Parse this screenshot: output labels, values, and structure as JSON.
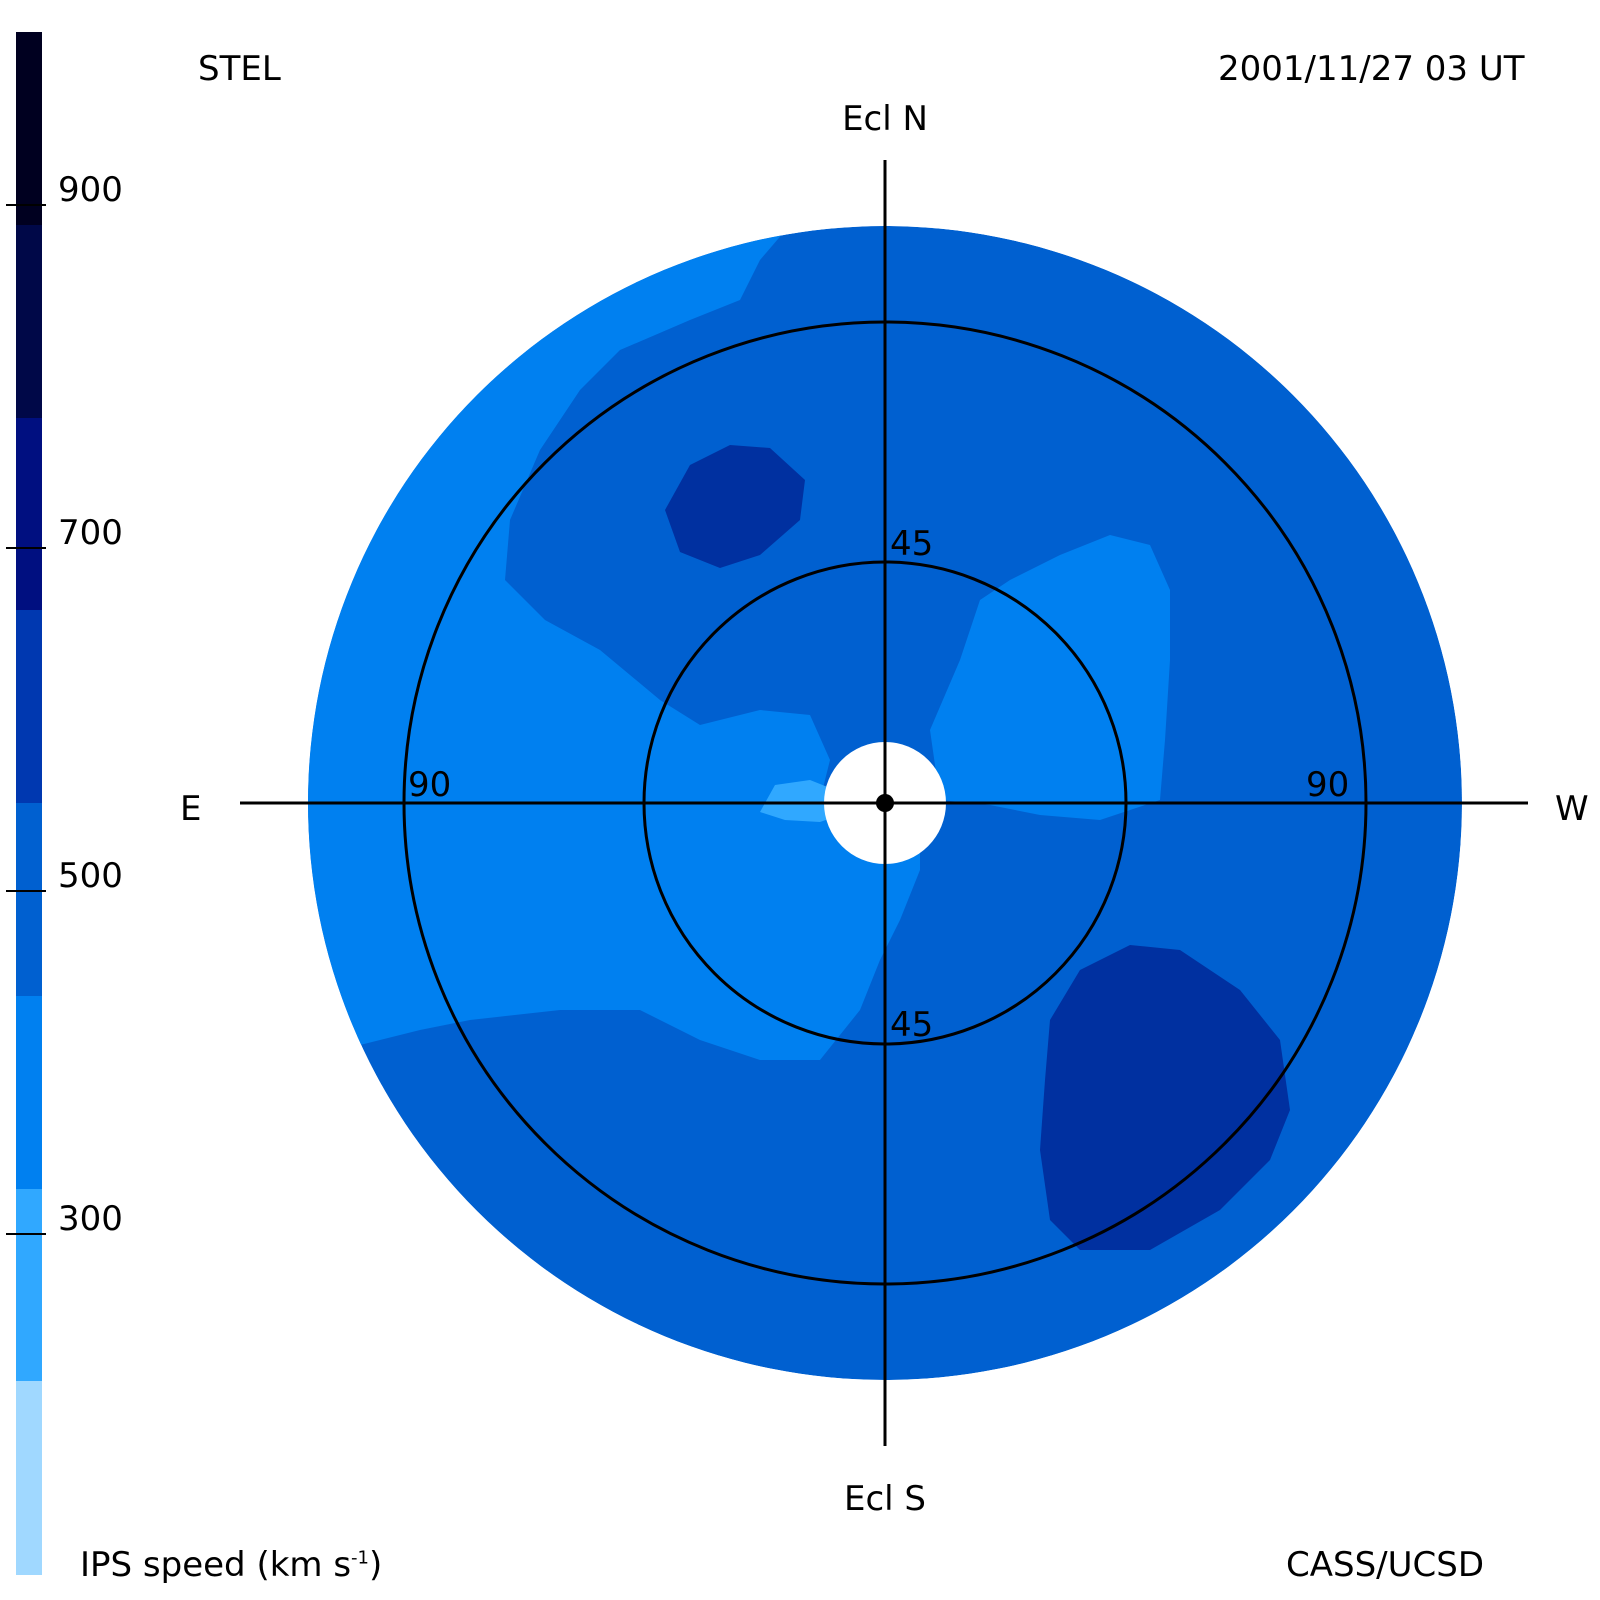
{
  "header": {
    "station": "STEL",
    "datetime": "2001/11/27 03 UT"
  },
  "footer": {
    "colorbar_title_main": "IPS speed (km s",
    "colorbar_title_sup": "-1",
    "colorbar_title_close": ")",
    "credit": "CASS/UCSD"
  },
  "map": {
    "north_label": "Ecl N",
    "south_label": "Ecl S",
    "east_label": "E",
    "west_label": "W",
    "ring_inner_label_top": "45",
    "ring_inner_label_bottom": "45",
    "ring_outer_label_left": "90",
    "ring_outer_label_right": "90",
    "region_colors": {
      "background_disk": "#0060d0",
      "slow_region": "#0080f0",
      "fast_region": "#0030a0",
      "slowest_spot": "#30a8ff",
      "sun_occult": "#ffffff"
    }
  },
  "colorbar": {
    "tick_labels": [
      "900",
      "700",
      "500",
      "300"
    ],
    "segments": [
      {
        "color": "#000020"
      },
      {
        "color": "#000848"
      },
      {
        "color": "#000f80"
      },
      {
        "color": "#0038b0"
      },
      {
        "color": "#0060d0"
      },
      {
        "color": "#0080f0"
      },
      {
        "color": "#30a8ff"
      },
      {
        "color": "#a0d8ff"
      }
    ]
  }
}
